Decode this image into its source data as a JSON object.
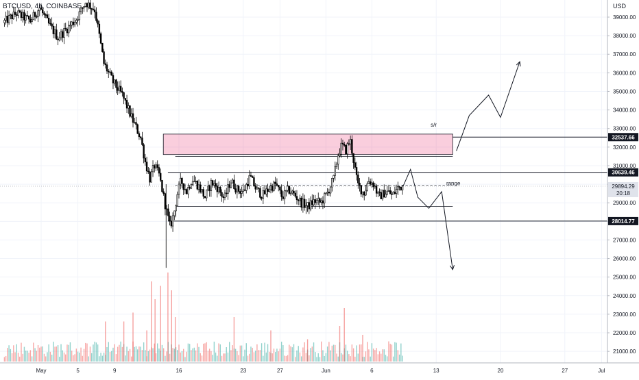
{
  "header": {
    "title": "BTCUSD, 4h, COINBASE"
  },
  "chart_data": {
    "type": "candlestick",
    "currency_label": "USD",
    "ylim": [
      20000,
      40000
    ],
    "price_ticks": [
      21000,
      22000,
      23000,
      24000,
      25000,
      26000,
      27000,
      28000,
      29000,
      30000,
      31000,
      32000,
      33000,
      34000,
      35000,
      36000,
      37000,
      38000,
      39000
    ],
    "price_tick_labels": [
      "21000.00",
      "22000.00",
      "23000.00",
      "24000.00",
      "25000.00",
      "26000.00",
      "27000.00",
      "28000.00",
      "29000.00",
      "30000.00",
      "31000.00",
      "32000.00",
      "33000.00",
      "34000.00",
      "35000.00",
      "36000.00",
      "37000.00",
      "38000.00",
      "39000.00"
    ],
    "time_ticks": [
      {
        "label": "May",
        "day": 1
      },
      {
        "label": "5",
        "day": 5
      },
      {
        "label": "9",
        "day": 9
      },
      {
        "label": "16",
        "day": 16
      },
      {
        "label": "23",
        "day": 23
      },
      {
        "label": "27",
        "day": 27
      },
      {
        "label": "Jun",
        "day": 32
      },
      {
        "label": "6",
        "day": 37
      },
      {
        "label": "13",
        "day": 44
      },
      {
        "label": "20",
        "day": 51
      },
      {
        "label": "27",
        "day": 58
      },
      {
        "label": "Jul",
        "day": 62
      }
    ],
    "price_path": [
      [
        -3,
        38700
      ],
      [
        -1.5,
        39200
      ],
      [
        0,
        38800
      ],
      [
        1,
        39500
      ],
      [
        2,
        38600
      ],
      [
        3,
        37900
      ],
      [
        4,
        38400
      ],
      [
        5,
        38900
      ],
      [
        6,
        39800
      ],
      [
        7,
        39400
      ],
      [
        7.5,
        38000
      ],
      [
        8,
        36500
      ],
      [
        8.5,
        36000
      ],
      [
        9,
        35500
      ],
      [
        10,
        34800
      ],
      [
        11,
        33600
      ],
      [
        12,
        32500
      ],
      [
        12.5,
        31200
      ],
      [
        13,
        30300
      ],
      [
        13.5,
        31000
      ],
      [
        14,
        30500
      ],
      [
        14.3,
        29800
      ],
      [
        14.8,
        28600
      ],
      [
        15.2,
        27700
      ],
      [
        15.6,
        28400
      ],
      [
        16,
        29500
      ],
      [
        16.4,
        30200
      ],
      [
        17,
        29600
      ],
      [
        17.6,
        30300
      ],
      [
        18.3,
        29900
      ],
      [
        19,
        29300
      ],
      [
        19.7,
        30100
      ],
      [
        20.4,
        29800
      ],
      [
        21.1,
        29200
      ],
      [
        21.8,
        30200
      ],
      [
        22.5,
        29700
      ],
      [
        23.2,
        29600
      ],
      [
        23.9,
        30400
      ],
      [
        24.6,
        29700
      ],
      [
        25.3,
        29400
      ],
      [
        26,
        29800
      ],
      [
        26.7,
        30000
      ],
      [
        27.4,
        29300
      ],
      [
        28.1,
        29700
      ],
      [
        28.8,
        29400
      ],
      [
        29.5,
        29000
      ],
      [
        30.2,
        28800
      ],
      [
        30.9,
        29100
      ],
      [
        31.6,
        29000
      ],
      [
        32.3,
        29500
      ],
      [
        33,
        30300
      ],
      [
        33.5,
        31600
      ],
      [
        33.9,
        32100
      ],
      [
        34.3,
        31800
      ],
      [
        34.8,
        32400
      ],
      [
        35.2,
        31200
      ],
      [
        35.6,
        30000
      ],
      [
        36.3,
        29500
      ],
      [
        36.8,
        30200
      ],
      [
        37.4,
        30000
      ],
      [
        37.9,
        29300
      ],
      [
        38.4,
        29500
      ],
      [
        38.9,
        29600
      ],
      [
        39.4,
        29400
      ],
      [
        40,
        29800
      ],
      [
        40.4,
        29894
      ]
    ],
    "levels": [
      {
        "label": "32537.66",
        "price": 32537.66
      },
      {
        "label": "30639.46",
        "price": 30639.46
      },
      {
        "label": "28014.77",
        "price": 28014.77
      }
    ],
    "current_price": {
      "label": "29894.29",
      "countdown": "20:18",
      "price": 29894.29
    },
    "supply_zone": {
      "price_top": 32700,
      "price_bottom": 31600,
      "day_start": 14.3,
      "day_end": 45.8
    },
    "annotations": [
      {
        "text": "s/r",
        "day": 43.4,
        "price": 33100
      },
      {
        "text": "range",
        "day": 45.1,
        "price": 29950
      }
    ],
    "range_box": {
      "price_top": 31500,
      "mid": 29950,
      "price_bottom": 28800,
      "day_start": 15.6,
      "day_end": 45.8
    },
    "up_scenario": [
      [
        46.2,
        31800
      ],
      [
        47.6,
        33700
      ],
      [
        49.7,
        34800
      ],
      [
        51.0,
        33600
      ],
      [
        53.1,
        36600
      ]
    ],
    "down_scenario": [
      [
        40.4,
        29900
      ],
      [
        41.2,
        30800
      ],
      [
        42.0,
        29300
      ],
      [
        43.2,
        28700
      ],
      [
        44.6,
        29600
      ],
      [
        45.8,
        25400
      ]
    ],
    "volumes": [
      {
        "day": 12.5,
        "value": 0.35
      },
      {
        "day": 13,
        "value": 0.9
      },
      {
        "day": 13.4,
        "value": 0.7
      },
      {
        "day": 14,
        "value": 0.85
      },
      {
        "day": 14.8,
        "value": 1.0
      },
      {
        "day": 15.2,
        "value": 0.8
      },
      {
        "day": 15.6,
        "value": 0.5
      },
      {
        "day": 10,
        "value": 0.45
      },
      {
        "day": 11,
        "value": 0.55
      },
      {
        "day": 8,
        "value": 0.45
      },
      {
        "day": 34,
        "value": 0.6
      },
      {
        "day": 33.5,
        "value": 0.4
      },
      {
        "day": 22,
        "value": 0.5
      },
      {
        "day": 26,
        "value": 0.35
      },
      {
        "day": 30,
        "value": 0.25
      },
      {
        "day": 36,
        "value": 0.3
      }
    ],
    "grid": true,
    "legend": "none"
  }
}
